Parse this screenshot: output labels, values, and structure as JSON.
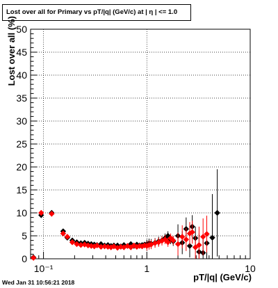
{
  "title": "Lost over all for Primary vs pT/|q| (GeV/c) at |  η | <= 1.0",
  "timestamp": "Wed Jan 31 10:56:21 2018",
  "chart_data": {
    "type": "scatter",
    "xlabel": "pT/|q| (GeV/c)",
    "ylabel": "Lost over all (%)",
    "xscale": "log",
    "xlim": [
      0.075,
      10
    ],
    "ylim": [
      0,
      50
    ],
    "xticks": [
      {
        "value": 0.1,
        "label": "10⁻¹"
      },
      {
        "value": 1,
        "label": "1"
      },
      {
        "value": 10,
        "label": "10"
      }
    ],
    "yticks": [
      0,
      5,
      10,
      15,
      20,
      25,
      30,
      35,
      40,
      45,
      50
    ],
    "grid": true,
    "series": [
      {
        "color": "#000000",
        "marker": "diamond",
        "points": [
          [
            0.08,
            0.3
          ],
          [
            0.095,
            9.5
          ],
          [
            0.12,
            10.0
          ],
          [
            0.155,
            6.0
          ],
          [
            0.17,
            4.6
          ],
          [
            0.19,
            4.0
          ],
          [
            0.21,
            3.6
          ],
          [
            0.23,
            3.4
          ],
          [
            0.25,
            3.5
          ],
          [
            0.27,
            3.3
          ],
          [
            0.29,
            3.2
          ],
          [
            0.31,
            3.1
          ],
          [
            0.33,
            3.0
          ],
          [
            0.36,
            3.2
          ],
          [
            0.39,
            2.9
          ],
          [
            0.42,
            3.0
          ],
          [
            0.45,
            2.8
          ],
          [
            0.48,
            2.9
          ],
          [
            0.52,
            2.9
          ],
          [
            0.56,
            2.7
          ],
          [
            0.6,
            3.0
          ],
          [
            0.65,
            2.8
          ],
          [
            0.7,
            3.2
          ],
          [
            0.75,
            2.8
          ],
          [
            0.8,
            3.1
          ],
          [
            0.85,
            2.9
          ],
          [
            0.9,
            3.0
          ],
          [
            0.95,
            3.1
          ],
          [
            1.0,
            3.2
          ],
          [
            1.05,
            3.4
          ],
          [
            1.1,
            3.3
          ],
          [
            1.2,
            3.5
          ],
          [
            1.3,
            3.8
          ],
          [
            1.4,
            4.0
          ],
          [
            1.5,
            4.5
          ],
          [
            1.6,
            5.0
          ],
          [
            1.7,
            4.2
          ],
          [
            1.8,
            3.8
          ],
          [
            2.0,
            5.0
          ],
          [
            2.2,
            3.5
          ],
          [
            2.4,
            6.5
          ],
          [
            2.6,
            2.8
          ],
          [
            2.75,
            7.0
          ],
          [
            2.95,
            4.5
          ],
          [
            3.2,
            1.5
          ],
          [
            3.5,
            1.3
          ],
          [
            3.8,
            3.4
          ],
          [
            4.3,
            4.6
          ],
          [
            4.8,
            10.0
          ]
        ]
      },
      {
        "color": "#ff0000",
        "marker": "diamond",
        "points": [
          [
            0.08,
            0.2
          ],
          [
            0.095,
            10.0
          ],
          [
            0.12,
            9.8
          ],
          [
            0.155,
            5.5
          ],
          [
            0.17,
            4.8
          ],
          [
            0.19,
            3.6
          ],
          [
            0.21,
            3.2
          ],
          [
            0.23,
            3.0
          ],
          [
            0.25,
            3.1
          ],
          [
            0.27,
            2.9
          ],
          [
            0.29,
            2.8
          ],
          [
            0.31,
            2.7
          ],
          [
            0.33,
            2.9
          ],
          [
            0.36,
            2.6
          ],
          [
            0.39,
            2.7
          ],
          [
            0.42,
            2.6
          ],
          [
            0.45,
            2.5
          ],
          [
            0.48,
            2.7
          ],
          [
            0.52,
            2.4
          ],
          [
            0.56,
            2.6
          ],
          [
            0.6,
            2.5
          ],
          [
            0.65,
            2.8
          ],
          [
            0.7,
            2.5
          ],
          [
            0.75,
            2.9
          ],
          [
            0.8,
            2.6
          ],
          [
            0.85,
            2.8
          ],
          [
            0.9,
            2.7
          ],
          [
            0.95,
            2.9
          ],
          [
            1.0,
            2.8
          ],
          [
            1.05,
            3.0
          ],
          [
            1.1,
            3.1
          ],
          [
            1.2,
            3.4
          ],
          [
            1.3,
            3.6
          ],
          [
            1.4,
            3.9
          ],
          [
            1.5,
            4.2
          ],
          [
            1.6,
            3.6
          ],
          [
            1.7,
            4.5
          ],
          [
            1.8,
            4.0
          ],
          [
            2.0,
            3.2
          ],
          [
            2.2,
            4.8
          ],
          [
            2.4,
            4.2
          ],
          [
            2.6,
            5.5
          ],
          [
            2.75,
            5.8
          ],
          [
            2.95,
            2.5
          ],
          [
            3.2,
            3.0
          ],
          [
            3.5,
            4.8
          ],
          [
            3.8,
            5.4
          ]
        ]
      }
    ]
  }
}
